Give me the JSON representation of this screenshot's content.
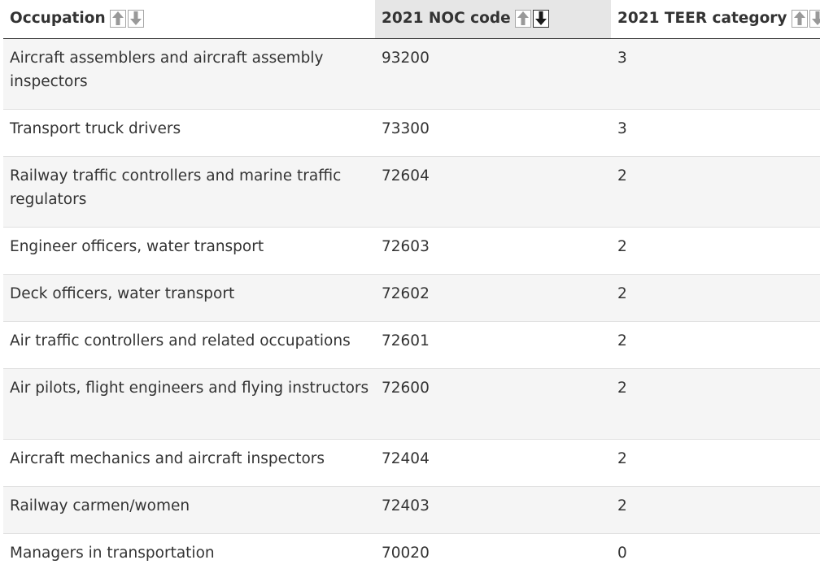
{
  "table": {
    "headers": {
      "occupation": "Occupation",
      "noc_code": "2021 NOC code",
      "teer_category": "2021 TEER category"
    },
    "sort_icons": {
      "ascending": "arrow-up-icon",
      "descending": "arrow-down-icon",
      "active_column": "noc_code",
      "active_direction": "descending"
    },
    "rows": [
      {
        "occupation": "Aircraft assemblers and aircraft assembly inspectors",
        "noc": "93200",
        "teer": "3"
      },
      {
        "occupation": "Transport truck drivers",
        "noc": "73300",
        "teer": "3"
      },
      {
        "occupation": "Railway traffic controllers and marine traffic regulators",
        "noc": "72604",
        "teer": "2"
      },
      {
        "occupation": "Engineer officers, water transport",
        "noc": "72603",
        "teer": "2"
      },
      {
        "occupation": "Deck officers, water transport",
        "noc": "72602",
        "teer": "2"
      },
      {
        "occupation": "Air traffic controllers and related occupations",
        "noc": "72601",
        "teer": "2"
      },
      {
        "occupation": "Air pilots, flight engineers and flying instructors",
        "noc": "72600",
        "teer": "2"
      },
      {
        "occupation": "Aircraft mechanics and aircraft inspectors",
        "noc": "72404",
        "teer": "2"
      },
      {
        "occupation": "Railway carmen/women",
        "noc": "72403",
        "teer": "2"
      },
      {
        "occupation": "Managers in transportation",
        "noc": "70020",
        "teer": "0"
      }
    ]
  },
  "colors": {
    "text": "#333333",
    "row_stripe": "#f5f5f5",
    "sorted_header_bg": "#e6e6e6",
    "inactive_arrow": "#999999",
    "active_arrow": "#1a1a1a"
  }
}
